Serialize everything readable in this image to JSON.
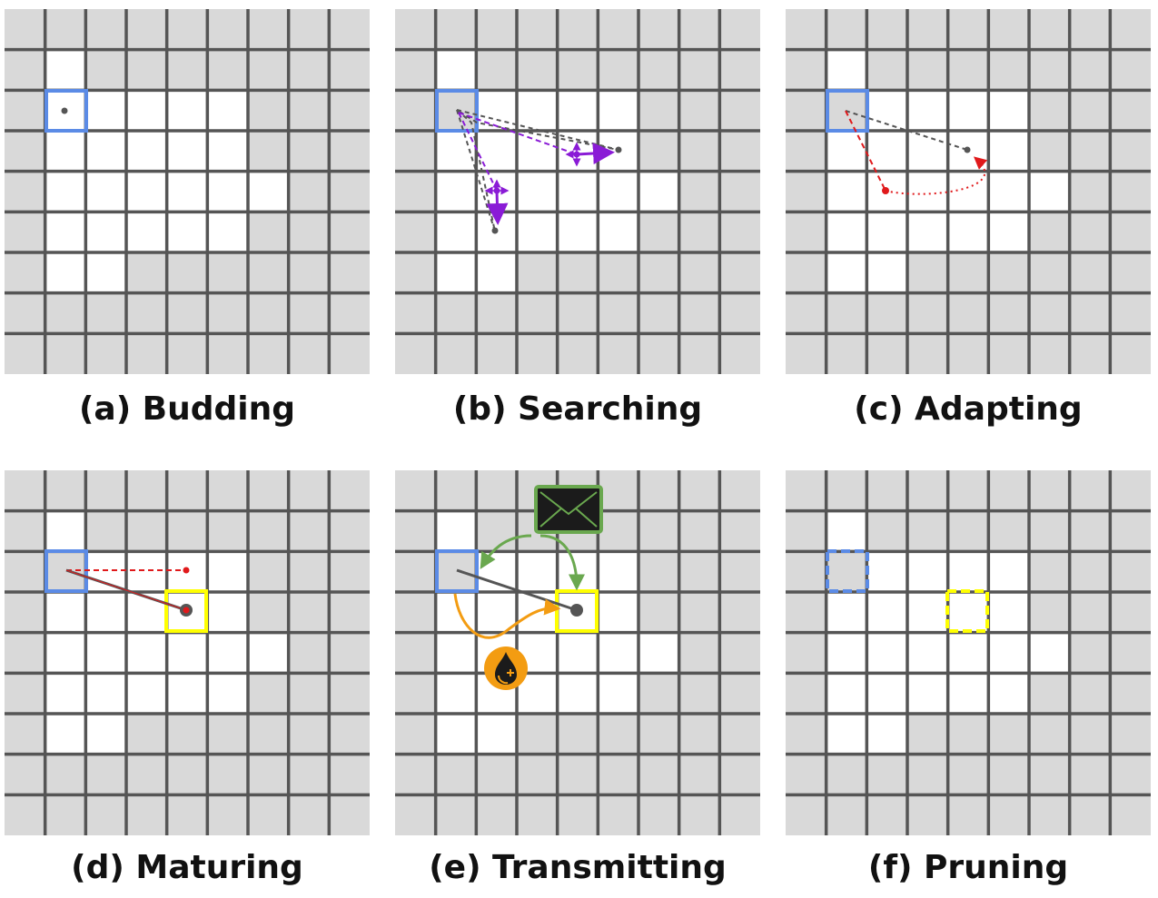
{
  "figure": {
    "grid": {
      "columns": 9,
      "rows": 9,
      "colors": {
        "cell_grey": "#d9d9d9",
        "cell_white": "#ffffff",
        "grid_line": "#555555",
        "soma_blue": "#5b8be6",
        "target_yellow": "#ffff00",
        "growth_purple": "#8a1bd6",
        "adapt_red": "#e0191b",
        "message_green": "#6aa84f",
        "nutrient_orange": "#f39c12",
        "axon_grey": "#555555"
      }
    },
    "panels": [
      {
        "id": "a",
        "caption": "(a) Budding",
        "white_cells": [
          [
            1,
            1
          ],
          [
            1,
            2
          ],
          [
            2,
            2
          ],
          [
            3,
            2
          ],
          [
            4,
            2
          ],
          [
            5,
            2
          ],
          [
            1,
            3
          ],
          [
            2,
            3
          ],
          [
            3,
            3
          ],
          [
            4,
            3
          ],
          [
            5,
            3
          ],
          [
            1,
            4
          ],
          [
            2,
            4
          ],
          [
            3,
            4
          ],
          [
            4,
            4
          ],
          [
            5,
            4
          ],
          [
            6,
            4
          ],
          [
            1,
            5
          ],
          [
            2,
            5
          ],
          [
            3,
            5
          ],
          [
            4,
            5
          ],
          [
            5,
            5
          ],
          [
            1,
            6
          ],
          [
            2,
            6
          ]
        ]
      },
      {
        "id": "b",
        "caption": "(b) Searching",
        "white_cells": [
          [
            1,
            1
          ],
          [
            2,
            2
          ],
          [
            3,
            2
          ],
          [
            4,
            2
          ],
          [
            5,
            2
          ],
          [
            1,
            3
          ],
          [
            2,
            3
          ],
          [
            3,
            3
          ],
          [
            4,
            3
          ],
          [
            5,
            3
          ],
          [
            1,
            4
          ],
          [
            2,
            4
          ],
          [
            3,
            4
          ],
          [
            4,
            4
          ],
          [
            5,
            4
          ],
          [
            6,
            4
          ],
          [
            1,
            5
          ],
          [
            2,
            5
          ],
          [
            3,
            5
          ],
          [
            4,
            5
          ],
          [
            5,
            5
          ],
          [
            1,
            6
          ],
          [
            2,
            6
          ]
        ]
      },
      {
        "id": "c",
        "caption": "(c) Adapting",
        "white_cells": [
          [
            1,
            1
          ],
          [
            2,
            2
          ],
          [
            3,
            2
          ],
          [
            4,
            2
          ],
          [
            5,
            2
          ],
          [
            1,
            3
          ],
          [
            2,
            3
          ],
          [
            3,
            3
          ],
          [
            4,
            3
          ],
          [
            5,
            3
          ],
          [
            1,
            4
          ],
          [
            2,
            4
          ],
          [
            3,
            4
          ],
          [
            4,
            4
          ],
          [
            5,
            4
          ],
          [
            6,
            4
          ],
          [
            1,
            5
          ],
          [
            2,
            5
          ],
          [
            3,
            5
          ],
          [
            4,
            5
          ],
          [
            5,
            5
          ],
          [
            1,
            6
          ],
          [
            2,
            6
          ]
        ]
      },
      {
        "id": "d",
        "caption": "(d) Maturing",
        "white_cells": [
          [
            1,
            1
          ],
          [
            2,
            2
          ],
          [
            3,
            2
          ],
          [
            4,
            2
          ],
          [
            5,
            2
          ],
          [
            1,
            3
          ],
          [
            2,
            3
          ],
          [
            3,
            3
          ],
          [
            4,
            3
          ],
          [
            5,
            3
          ],
          [
            1,
            4
          ],
          [
            2,
            4
          ],
          [
            3,
            4
          ],
          [
            4,
            4
          ],
          [
            5,
            4
          ],
          [
            6,
            4
          ],
          [
            1,
            5
          ],
          [
            2,
            5
          ],
          [
            3,
            5
          ],
          [
            4,
            5
          ],
          [
            5,
            5
          ],
          [
            1,
            6
          ],
          [
            2,
            6
          ]
        ]
      },
      {
        "id": "e",
        "caption": "(e) Transmitting",
        "white_cells": [
          [
            1,
            1
          ],
          [
            2,
            2
          ],
          [
            3,
            2
          ],
          [
            4,
            2
          ],
          [
            5,
            2
          ],
          [
            1,
            3
          ],
          [
            2,
            3
          ],
          [
            3,
            3
          ],
          [
            4,
            3
          ],
          [
            5,
            3
          ],
          [
            1,
            4
          ],
          [
            2,
            4
          ],
          [
            3,
            4
          ],
          [
            4,
            4
          ],
          [
            5,
            4
          ],
          [
            6,
            4
          ],
          [
            1,
            5
          ],
          [
            2,
            5
          ],
          [
            3,
            5
          ],
          [
            4,
            5
          ],
          [
            5,
            5
          ],
          [
            1,
            6
          ],
          [
            2,
            6
          ]
        ]
      },
      {
        "id": "f",
        "caption": "(f) Pruning",
        "white_cells": [
          [
            1,
            1
          ],
          [
            2,
            2
          ],
          [
            3,
            2
          ],
          [
            4,
            2
          ],
          [
            5,
            2
          ],
          [
            1,
            3
          ],
          [
            2,
            3
          ],
          [
            3,
            3
          ],
          [
            4,
            3
          ],
          [
            5,
            3
          ],
          [
            1,
            4
          ],
          [
            2,
            4
          ],
          [
            3,
            4
          ],
          [
            4,
            4
          ],
          [
            5,
            4
          ],
          [
            6,
            4
          ],
          [
            1,
            5
          ],
          [
            2,
            5
          ],
          [
            3,
            5
          ],
          [
            4,
            5
          ],
          [
            5,
            5
          ],
          [
            1,
            6
          ],
          [
            2,
            6
          ]
        ]
      }
    ],
    "icons": {
      "message": "envelope-icon",
      "nutrient": "droplet-plus-icon"
    }
  }
}
